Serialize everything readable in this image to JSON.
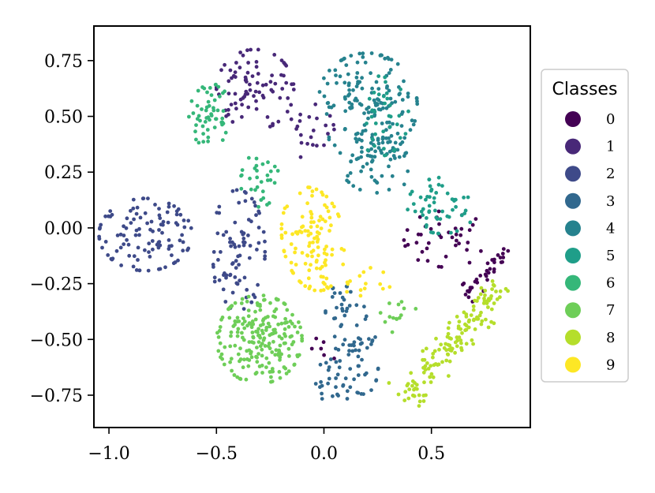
{
  "chart_data": {
    "type": "scatter",
    "title": "",
    "xlabel": "",
    "ylabel": "",
    "xlim": [
      -1.07,
      0.96
    ],
    "ylim": [
      -0.895,
      0.905
    ],
    "xticks": [
      -1.0,
      -0.5,
      0.0,
      0.5
    ],
    "xtick_labels": [
      "−1.0",
      "−0.5",
      "0.0",
      "0.5"
    ],
    "yticks": [
      0.75,
      0.5,
      0.25,
      0.0,
      -0.25,
      -0.5,
      -0.75
    ],
    "ytick_labels": [
      "0.75",
      "0.50",
      "0.25",
      "0.00",
      "−0.25",
      "−0.50",
      "−0.75"
    ],
    "grid": false,
    "legend": {
      "title": "Classes",
      "placement": "right, outside plot area",
      "entries": [
        "0",
        "1",
        "2",
        "3",
        "4",
        "5",
        "6",
        "7",
        "8",
        "9"
      ]
    },
    "colors": [
      "#440154",
      "#482878",
      "#3e4a89",
      "#31688e",
      "#26828e",
      "#1f9e89",
      "#35b779",
      "#6ece58",
      "#b5de2b",
      "#fde725"
    ],
    "clusters": [
      {
        "class": "0",
        "shape": "ellipse",
        "center": [
          0.57,
          -0.05
        ],
        "spread": [
          0.11,
          0.07
        ],
        "angle": 0,
        "n": 40
      },
      {
        "class": "0",
        "shape": "band",
        "from": [
          0.65,
          -0.3
        ],
        "to": [
          0.86,
          -0.1
        ],
        "width": 0.05,
        "n": 35
      },
      {
        "class": "0",
        "shape": "ellipse",
        "center": [
          0.05,
          -0.55
        ],
        "spread": [
          0.06,
          0.05
        ],
        "angle": 0,
        "n": 6
      },
      {
        "class": "1",
        "shape": "ellipse",
        "center": [
          -0.32,
          0.62
        ],
        "spread": [
          0.1,
          0.1
        ],
        "angle": 0,
        "n": 85
      },
      {
        "class": "1",
        "shape": "ellipse",
        "center": [
          -0.06,
          0.43
        ],
        "spread": [
          0.06,
          0.07
        ],
        "angle": 0,
        "n": 22
      },
      {
        "class": "2",
        "shape": "ellipse",
        "center": [
          -0.83,
          -0.03
        ],
        "spread": [
          0.12,
          0.09
        ],
        "angle": 0,
        "n": 110
      },
      {
        "class": "2",
        "shape": "ellipse",
        "center": [
          -0.4,
          -0.1
        ],
        "spread": [
          0.07,
          0.15
        ],
        "angle": 0,
        "n": 85
      },
      {
        "class": "3",
        "shape": "ellipse",
        "center": [
          0.13,
          -0.5
        ],
        "spread": [
          0.06,
          0.14
        ],
        "angle": 15,
        "n": 70
      },
      {
        "class": "3",
        "shape": "ellipse",
        "center": [
          0.05,
          -0.67
        ],
        "spread": [
          0.05,
          0.07
        ],
        "angle": 0,
        "n": 30
      },
      {
        "class": "4",
        "shape": "ellipse",
        "center": [
          0.2,
          0.55
        ],
        "spread": [
          0.13,
          0.13
        ],
        "angle": 0,
        "n": 160
      },
      {
        "class": "4",
        "shape": "ellipse",
        "center": [
          0.25,
          0.3
        ],
        "spread": [
          0.1,
          0.08
        ],
        "angle": 0,
        "n": 60
      },
      {
        "class": "5",
        "shape": "ellipse",
        "center": [
          0.55,
          0.1
        ],
        "spread": [
          0.09,
          0.07
        ],
        "angle": 0,
        "n": 55
      },
      {
        "class": "5",
        "shape": "ellipse",
        "center": [
          0.25,
          0.5
        ],
        "spread": [
          0.08,
          0.1
        ],
        "angle": 0,
        "n": 35
      },
      {
        "class": "6",
        "shape": "ellipse",
        "center": [
          -0.52,
          0.5
        ],
        "spread": [
          0.06,
          0.08
        ],
        "angle": 0,
        "n": 55
      },
      {
        "class": "6",
        "shape": "ellipse",
        "center": [
          -0.3,
          0.22
        ],
        "spread": [
          0.05,
          0.07
        ],
        "angle": 0,
        "n": 30
      },
      {
        "class": "7",
        "shape": "ellipse",
        "center": [
          -0.3,
          -0.5
        ],
        "spread": [
          0.11,
          0.11
        ],
        "angle": 0,
        "n": 210
      },
      {
        "class": "7",
        "shape": "ellipse",
        "center": [
          0.35,
          -0.4
        ],
        "spread": [
          0.05,
          0.04
        ],
        "angle": 0,
        "n": 14
      },
      {
        "class": "8",
        "shape": "band",
        "from": [
          0.38,
          -0.78
        ],
        "to": [
          0.82,
          -0.25
        ],
        "width": 0.07,
        "n": 150
      },
      {
        "class": "9",
        "shape": "ellipse",
        "center": [
          -0.05,
          -0.05
        ],
        "spread": [
          0.08,
          0.13
        ],
        "angle": 10,
        "n": 120
      },
      {
        "class": "9",
        "shape": "ellipse",
        "center": [
          0.2,
          -0.25
        ],
        "spread": [
          0.06,
          0.04
        ],
        "angle": 0,
        "n": 15
      }
    ]
  }
}
